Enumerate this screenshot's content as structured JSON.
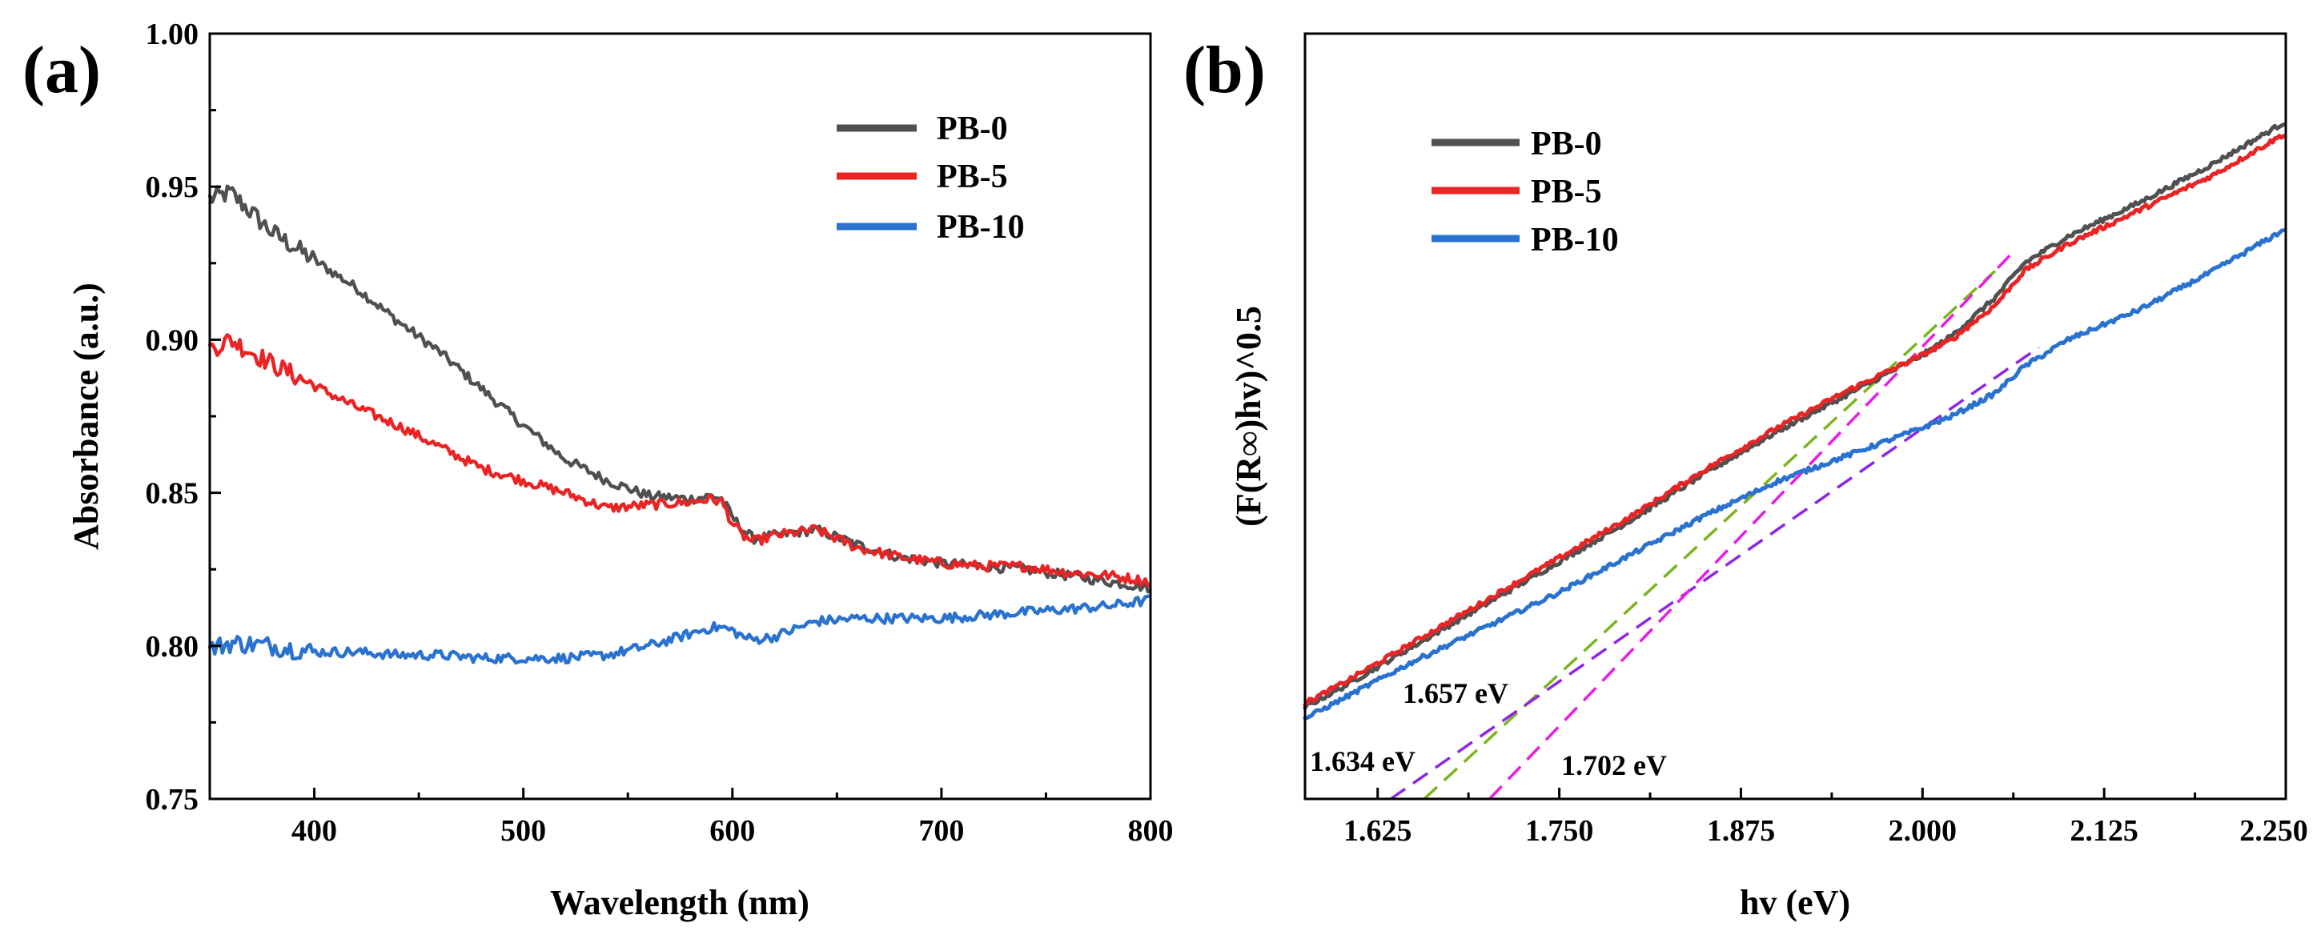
{
  "colors": {
    "pb0": "#505050",
    "pb5": "#ea2424",
    "pb10": "#2a72d0",
    "green": "#7ab51d",
    "purple": "#8e24e8",
    "magenta": "#ea1ae8"
  },
  "chart_data": [
    {
      "type": "line",
      "panel_label": "(a)",
      "title": "",
      "xlabel": "Wavelength (nm)",
      "ylabel": "Absorbance (a.u.)",
      "xlim": [
        350,
        800
      ],
      "ylim": [
        0.75,
        1.0
      ],
      "x_ticks": [
        "400",
        "500",
        "600",
        "700",
        "800"
      ],
      "y_ticks": [
        "0.75",
        "0.80",
        "0.85",
        "0.90",
        "0.95",
        "1.00"
      ],
      "legend_position": "top-right",
      "x": [
        350,
        360,
        380,
        400,
        420,
        440,
        460,
        480,
        500,
        520,
        540,
        560,
        580,
        590,
        595,
        600,
        605,
        610,
        620,
        640,
        660,
        680,
        700,
        720,
        740,
        760,
        780,
        790,
        800
      ],
      "series": [
        {
          "name": "PB-0",
          "values": [
            0.946,
            0.948,
            0.935,
            0.926,
            0.917,
            0.906,
            0.896,
            0.884,
            0.872,
            0.861,
            0.854,
            0.849,
            0.848,
            0.849,
            0.848,
            0.842,
            0.838,
            0.835,
            0.836,
            0.838,
            0.833,
            0.829,
            0.827,
            0.826,
            0.825,
            0.823,
            0.821,
            0.82,
            0.819
          ]
        },
        {
          "name": "PB-5",
          "values": [
            0.897,
            0.9,
            0.892,
            0.885,
            0.878,
            0.872,
            0.865,
            0.858,
            0.854,
            0.85,
            0.845,
            0.846,
            0.847,
            0.848,
            0.847,
            0.84,
            0.836,
            0.834,
            0.836,
            0.838,
            0.832,
            0.829,
            0.827,
            0.826,
            0.826,
            0.824,
            0.823,
            0.822,
            0.821
          ]
        },
        {
          "name": "PB-10",
          "values": [
            0.799,
            0.801,
            0.8,
            0.798,
            0.798,
            0.797,
            0.797,
            0.796,
            0.796,
            0.796,
            0.797,
            0.8,
            0.804,
            0.806,
            0.806,
            0.805,
            0.803,
            0.802,
            0.803,
            0.808,
            0.809,
            0.809,
            0.809,
            0.81,
            0.811,
            0.812,
            0.813,
            0.814,
            0.815
          ]
        }
      ]
    },
    {
      "type": "line",
      "panel_label": "(b)",
      "title": "",
      "xlabel": "hv (eV)",
      "ylabel": "(F(R∞)hv)^0.5",
      "xlim": [
        1.575,
        2.25
      ],
      "ylim": [
        0,
        1
      ],
      "x_ticks": [
        "1.625",
        "1.750",
        "1.875",
        "2.000",
        "2.125",
        "2.250"
      ],
      "legend_position": "top-left",
      "x": [
        1.575,
        1.6,
        1.65,
        1.7,
        1.75,
        1.8,
        1.85,
        1.9,
        1.95,
        2.0,
        2.02,
        2.05,
        2.07,
        2.1,
        2.15,
        2.2,
        2.25
      ],
      "series": [
        {
          "name": "PB-0",
          "values": [
            0.12,
            0.145,
            0.2,
            0.255,
            0.31,
            0.365,
            0.425,
            0.48,
            0.53,
            0.58,
            0.605,
            0.655,
            0.7,
            0.735,
            0.78,
            0.83,
            0.885
          ]
        },
        {
          "name": "PB-5",
          "values": [
            0.125,
            0.15,
            0.205,
            0.26,
            0.315,
            0.37,
            0.43,
            0.485,
            0.535,
            0.58,
            0.6,
            0.645,
            0.69,
            0.725,
            0.77,
            0.815,
            0.87
          ]
        },
        {
          "name": "PB-10",
          "values": [
            0.105,
            0.13,
            0.18,
            0.225,
            0.27,
            0.32,
            0.37,
            0.415,
            0.45,
            0.485,
            0.5,
            0.53,
            0.565,
            0.6,
            0.64,
            0.69,
            0.745
          ]
        }
      ],
      "tangent_lines": [
        {
          "label": "1.657 eV",
          "color": "green",
          "intercept_ev": 1.657,
          "through": [
            2.05,
            0.69
          ]
        },
        {
          "label": "1.634 eV",
          "color": "purple",
          "intercept_ev": 1.634,
          "through": [
            2.08,
            0.59
          ]
        },
        {
          "label": "1.702 eV",
          "color": "magenta",
          "intercept_ev": 1.702,
          "through": [
            2.06,
            0.71
          ]
        }
      ]
    }
  ]
}
